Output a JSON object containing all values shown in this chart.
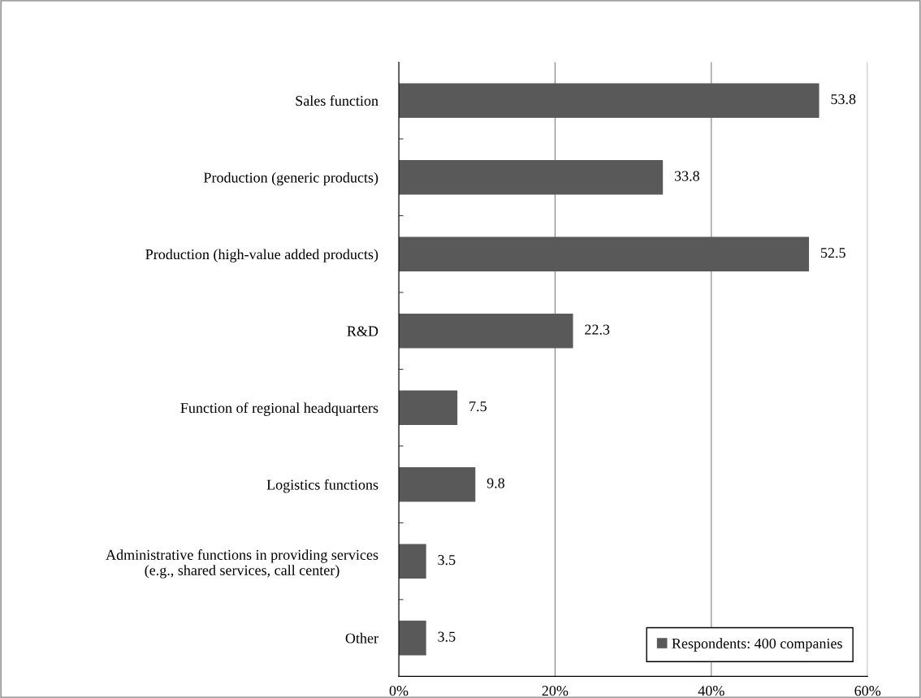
{
  "chart_data": {
    "type": "bar",
    "orientation": "horizontal",
    "categories": [
      "Sales function",
      "Production (generic products)",
      "Production (high-value added products)",
      "R&D",
      "Function of regional headquarters",
      "Logistics functions",
      "Administrative functions in providing services\n(e.g., shared services, call center)",
      "Other"
    ],
    "series": [
      {
        "name": "Respondents: 400 companies",
        "color": "#595959",
        "values": [
          53.8,
          33.8,
          52.5,
          22.3,
          7.5,
          9.8,
          3.5,
          3.5
        ]
      }
    ],
    "xlim": [
      0,
      60
    ],
    "xticks": [
      {
        "value": 0,
        "label": "0%"
      },
      {
        "value": 20,
        "label": "20%"
      },
      {
        "value": 40,
        "label": "40%"
      },
      {
        "value": 60,
        "label": "60%"
      }
    ],
    "grid": "x",
    "legend": "bottom right",
    "data_labels": true
  }
}
